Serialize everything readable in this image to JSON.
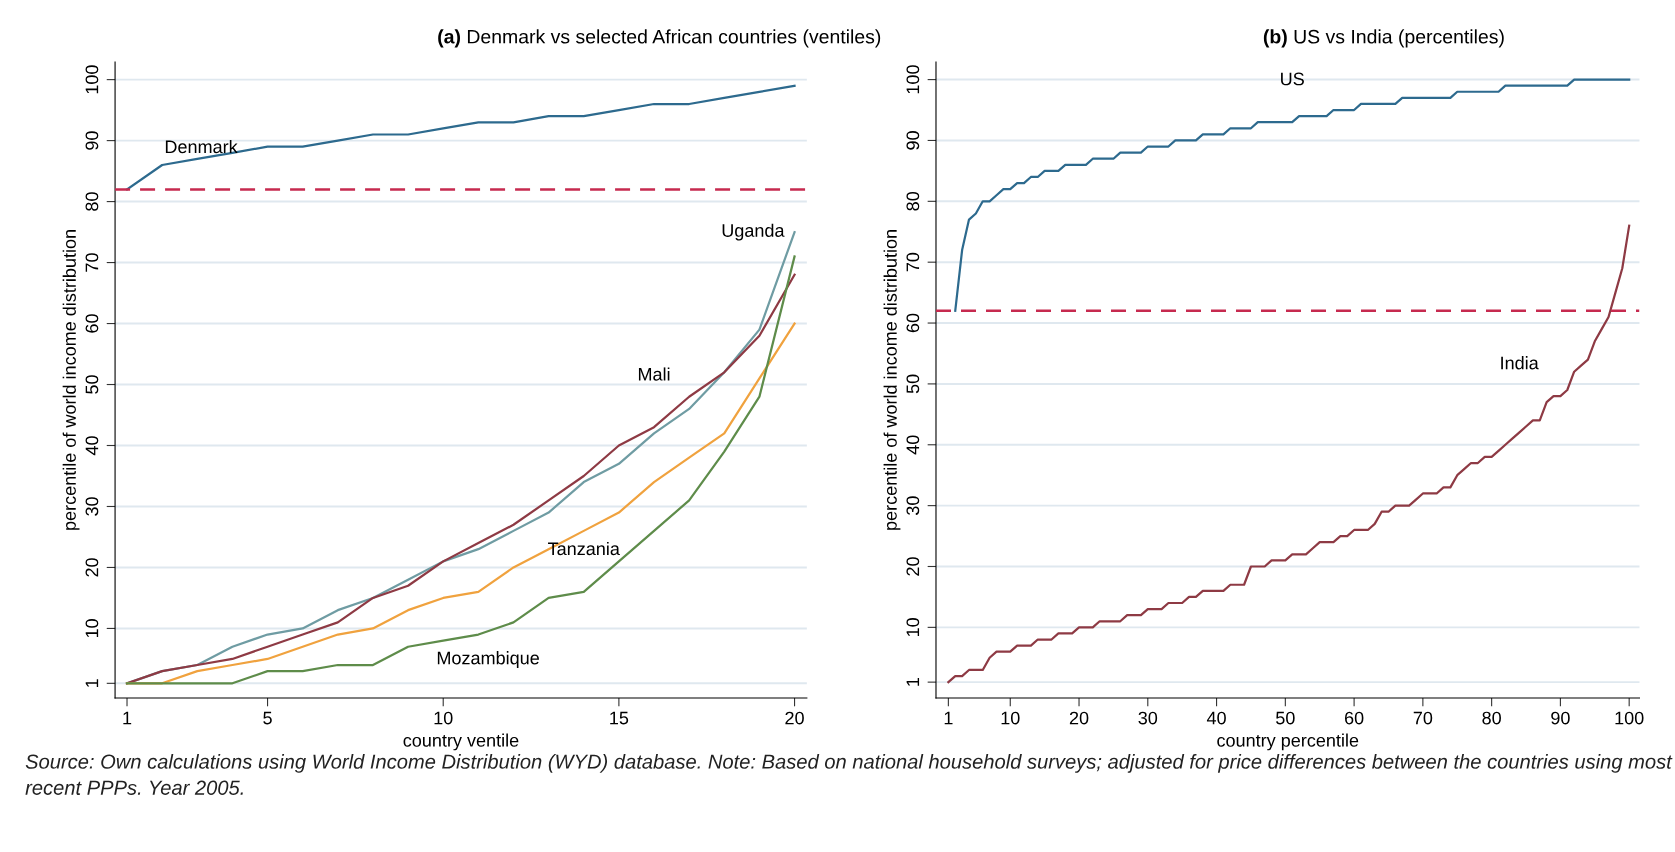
{
  "chart_data": [
    {
      "type": "line",
      "title": "(a) Denmark vs selected African countries (ventiles)",
      "xlabel": "country ventile",
      "ylabel": "percentile of world income distribution",
      "x": [
        1,
        2,
        3,
        4,
        5,
        6,
        7,
        8,
        9,
        10,
        11,
        12,
        13,
        14,
        15,
        16,
        17,
        18,
        19,
        20
      ],
      "series": [
        {
          "name": "Denmark",
          "color": "#2d6a8e",
          "values": [
            82,
            86,
            87,
            88,
            89,
            89,
            90,
            91,
            91,
            92,
            93,
            93,
            94,
            94,
            95,
            96,
            96,
            97,
            98,
            99
          ]
        },
        {
          "name": "Uganda",
          "color": "#6f9ca3",
          "values": [
            1,
            3,
            4,
            7,
            9,
            10,
            13,
            15,
            18,
            21,
            23,
            26,
            29,
            34,
            37,
            42,
            46,
            52,
            59,
            75
          ]
        },
        {
          "name": "Mali",
          "color": "#8e3a44",
          "values": [
            1,
            3,
            4,
            5,
            7,
            9,
            11,
            15,
            17,
            21,
            24,
            27,
            31,
            35,
            40,
            43,
            48,
            52,
            58,
            68
          ]
        },
        {
          "name": "Tanzania",
          "color": "#f0a23e",
          "values": [
            1,
            1,
            3,
            4,
            5,
            7,
            9,
            10,
            13,
            15,
            16,
            20,
            23,
            26,
            29,
            34,
            38,
            42,
            51,
            60
          ]
        },
        {
          "name": "Mozambique",
          "color": "#5e8c4a",
          "values": [
            1,
            1,
            1,
            1,
            3,
            3,
            4,
            4,
            7,
            8,
            9,
            11,
            15,
            16,
            21,
            26,
            31,
            39,
            48,
            71
          ]
        }
      ],
      "ref_lines": [
        {
          "axis": "y",
          "value": 82,
          "color": "#c62a4f",
          "line_style": "dashed"
        }
      ],
      "annotations": [
        "Source: Own calculations using World Income Distribution (WYD) database. Note: Based on national household surveys; adjusted for price differences between the countries using most recent PPPs. Year 2005."
      ],
      "xlim": [
        0.66,
        20.35
      ],
      "xticks": [
        1,
        5,
        10,
        15,
        20
      ],
      "ylim": [
        -1.4,
        102.9
      ],
      "yticks": [
        1,
        10,
        20,
        30,
        40,
        50,
        60,
        70,
        80,
        90,
        100
      ],
      "grid": "y",
      "line_style": "solid",
      "marker": "none",
      "legend": false
    },
    {
      "type": "line",
      "title": "(b) US vs India (percentiles)",
      "xlabel": "country percentile",
      "ylabel": "percentile of world income distribution",
      "x": [
        1,
        2,
        3,
        4,
        5,
        6,
        7,
        8,
        9,
        10,
        11,
        12,
        13,
        14,
        15,
        16,
        17,
        18,
        19,
        20,
        21,
        22,
        23,
        24,
        25,
        26,
        27,
        28,
        29,
        30,
        31,
        32,
        33,
        34,
        35,
        36,
        37,
        38,
        39,
        40,
        41,
        42,
        43,
        44,
        45,
        46,
        47,
        48,
        49,
        50,
        51,
        52,
        53,
        54,
        55,
        56,
        57,
        58,
        59,
        60,
        61,
        62,
        63,
        64,
        65,
        66,
        67,
        68,
        69,
        70,
        71,
        72,
        73,
        74,
        75,
        76,
        77,
        78,
        79,
        80,
        81,
        82,
        83,
        84,
        85,
        86,
        87,
        88,
        89,
        90,
        91,
        92,
        93,
        94,
        95,
        96,
        97,
        98,
        99,
        100
      ],
      "series": [
        {
          "name": "US",
          "color": "#2d6a8e",
          "values": [
            null,
            62,
            72,
            77,
            78,
            80,
            80,
            81,
            82,
            82,
            83,
            83,
            84,
            84,
            85,
            85,
            85,
            86,
            86,
            86,
            86,
            87,
            87,
            87,
            87,
            88,
            88,
            88,
            88,
            89,
            89,
            89,
            89,
            90,
            90,
            90,
            90,
            91,
            91,
            91,
            91,
            92,
            92,
            92,
            92,
            93,
            93,
            93,
            93,
            93,
            93,
            94,
            94,
            94,
            94,
            94,
            95,
            95,
            95,
            95,
            96,
            96,
            96,
            96,
            96,
            96,
            97,
            97,
            97,
            97,
            97,
            97,
            97,
            97,
            98,
            98,
            98,
            98,
            98,
            98,
            98,
            99,
            99,
            99,
            99,
            99,
            99,
            99,
            99,
            99,
            99,
            100,
            100,
            100,
            100,
            100,
            100,
            100,
            100,
            100
          ]
        },
        {
          "name": "India",
          "color": "#8e3a44",
          "values": [
            1,
            2,
            2,
            3,
            3,
            3,
            5,
            6,
            6,
            6,
            7,
            7,
            7,
            8,
            8,
            8,
            9,
            9,
            9,
            10,
            10,
            10,
            11,
            11,
            11,
            11,
            12,
            12,
            12,
            13,
            13,
            13,
            14,
            14,
            14,
            15,
            15,
            16,
            16,
            16,
            16,
            17,
            17,
            17,
            20,
            20,
            20,
            21,
            21,
            21,
            22,
            22,
            22,
            23,
            24,
            24,
            24,
            25,
            25,
            26,
            26,
            26,
            27,
            29,
            29,
            30,
            30,
            30,
            31,
            32,
            32,
            32,
            33,
            33,
            35,
            36,
            37,
            37,
            38,
            38,
            39,
            40,
            41,
            42,
            43,
            44,
            44,
            47,
            48,
            48,
            49,
            52,
            53,
            54,
            57,
            59,
            61,
            65,
            69,
            76
          ]
        }
      ],
      "ref_lines": [
        {
          "axis": "y",
          "value": 62,
          "color": "#c62a4f",
          "line_style": "dashed"
        }
      ],
      "xlim": [
        -0.8,
        101.5
      ],
      "xticks": [
        1,
        10,
        20,
        30,
        40,
        50,
        60,
        70,
        80,
        90,
        100
      ],
      "ylim": [
        -1.6,
        102.9
      ],
      "yticks": [
        1,
        10,
        20,
        30,
        40,
        50,
        60,
        70,
        80,
        90,
        100
      ],
      "grid": "y",
      "line_style": "solid",
      "marker": "none",
      "legend": false
    }
  ]
}
